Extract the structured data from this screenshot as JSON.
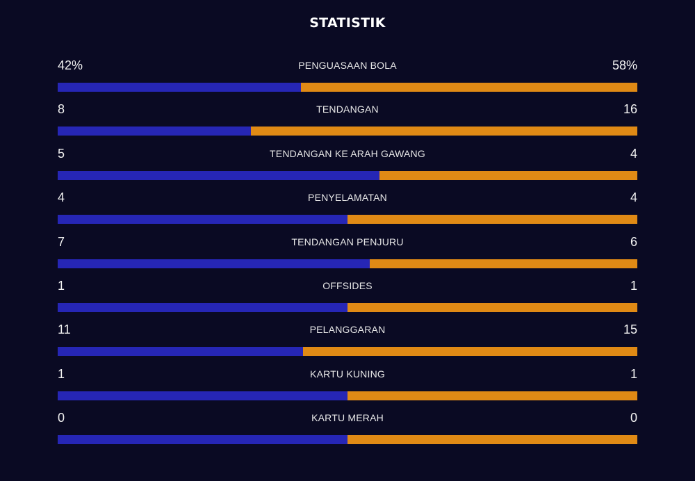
{
  "title": "STATISTIK",
  "colors": {
    "background": "#0a0a23",
    "home": "#2626b5",
    "away": "#e08a15"
  },
  "stats": [
    {
      "label": "PENGUASAAN BOLA",
      "home": "42%",
      "away": "58%",
      "home_share": 0.42
    },
    {
      "label": "TENDANGAN",
      "home": "8",
      "away": "16",
      "home_share": 0.3333
    },
    {
      "label": "TENDANGAN KE ARAH GAWANG",
      "home": "5",
      "away": "4",
      "home_share": 0.5556
    },
    {
      "label": "PENYELAMATAN",
      "home": "4",
      "away": "4",
      "home_share": 0.5
    },
    {
      "label": "TENDANGAN PENJURU",
      "home": "7",
      "away": "6",
      "home_share": 0.5385
    },
    {
      "label": "OFFSIDES",
      "home": "1",
      "away": "1",
      "home_share": 0.5
    },
    {
      "label": "PELANGGARAN",
      "home": "11",
      "away": "15",
      "home_share": 0.4231
    },
    {
      "label": "KARTU KUNING",
      "home": "1",
      "away": "1",
      "home_share": 0.5
    },
    {
      "label": "KARTU MERAH",
      "home": "0",
      "away": "0",
      "home_share": 0.5
    }
  ]
}
